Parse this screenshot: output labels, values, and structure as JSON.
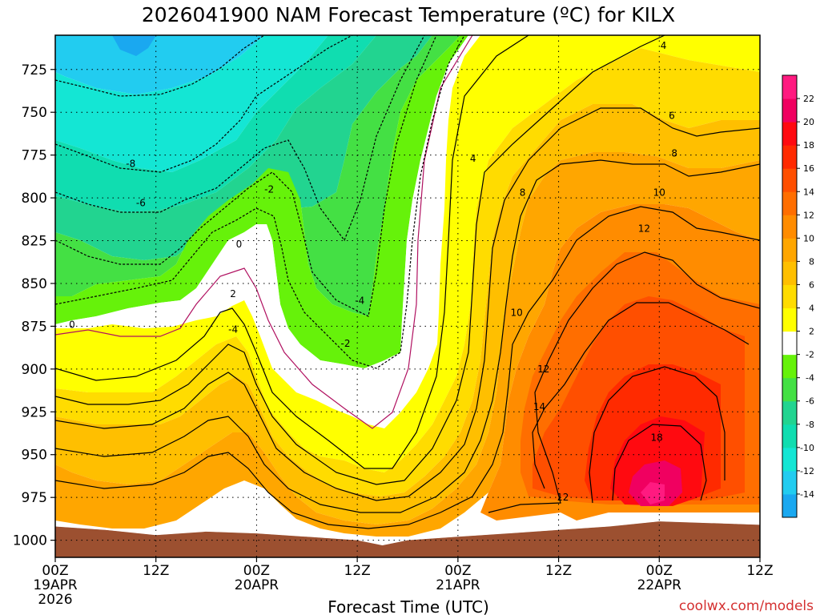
{
  "chart_data": {
    "type": "heatmap",
    "title": "2026041900 NAM Forecast Temperature (ºC) for KILX",
    "xlabel": "Forecast Time (UTC)",
    "ylabel": "",
    "credit": "coolwx.com/models",
    "x_hours_range": [
      0,
      84
    ],
    "y_pressure_range": [
      705,
      1010
    ],
    "y_ticks": [
      725,
      750,
      775,
      800,
      825,
      850,
      875,
      900,
      925,
      950,
      975,
      1000
    ],
    "x_ticks": [
      {
        "hour": 0,
        "label": "00Z",
        "sub": "19APR",
        "sub2": "2026"
      },
      {
        "hour": 12,
        "label": "12Z",
        "sub": "",
        "sub2": ""
      },
      {
        "hour": 24,
        "label": "00Z",
        "sub": "20APR",
        "sub2": ""
      },
      {
        "hour": 36,
        "label": "12Z",
        "sub": "",
        "sub2": ""
      },
      {
        "hour": 48,
        "label": "00Z",
        "sub": "21APR",
        "sub2": ""
      },
      {
        "hour": 60,
        "label": "12Z",
        "sub": "",
        "sub2": ""
      },
      {
        "hour": 72,
        "label": "00Z",
        "sub": "22APR",
        "sub2": ""
      },
      {
        "hour": 84,
        "label": "12Z",
        "sub": "",
        "sub2": ""
      }
    ],
    "colorbar": {
      "levels": [
        -16,
        -14,
        -12,
        -10,
        -8,
        -6,
        -4,
        -2,
        2,
        4,
        6,
        8,
        10,
        12,
        14,
        16,
        18,
        20,
        22,
        24
      ],
      "labels": [
        "-14",
        "-12",
        "-10",
        "-8",
        "-6",
        "-4",
        "-2",
        "2",
        "4",
        "6",
        "8",
        "10",
        "12",
        "14",
        "16",
        "18",
        "20",
        "22"
      ],
      "colors": [
        "#1aa8f0",
        "#22ccf0",
        "#14e6d4",
        "#10ddb0",
        "#22d490",
        "#44e044",
        "#66f20a",
        "#ffffff",
        "#ffff00",
        "#ffdc00",
        "#ffbf00",
        "#ffa600",
        "#ff8c00",
        "#ff6e00",
        "#ff4f00",
        "#ff2a00",
        "#ff0a10",
        "#f00060",
        "#ff1a80"
      ]
    },
    "terrain_color": "#9c5030",
    "surface_pressure": [
      {
        "hour": 0,
        "p": 992
      },
      {
        "hour": 6,
        "p": 994
      },
      {
        "hour": 12,
        "p": 997
      },
      {
        "hour": 18,
        "p": 995
      },
      {
        "hour": 24,
        "p": 996
      },
      {
        "hour": 30,
        "p": 998
      },
      {
        "hour": 36,
        "p": 1000
      },
      {
        "hour": 39,
        "p": 1003
      },
      {
        "hour": 42,
        "p": 1000
      },
      {
        "hour": 48,
        "p": 998
      },
      {
        "hour": 54,
        "p": 996
      },
      {
        "hour": 60,
        "p": 994
      },
      {
        "hour": 66,
        "p": 992
      },
      {
        "hour": 72,
        "p": 989
      },
      {
        "hour": 78,
        "p": 990
      },
      {
        "hour": 84,
        "p": 991
      }
    ],
    "contour_labels": [
      {
        "text": "-8",
        "hour": 9.0,
        "p": 780
      },
      {
        "text": "-6",
        "hour": 10.2,
        "p": 803
      },
      {
        "text": "-2",
        "hour": 25.5,
        "p": 795
      },
      {
        "text": "0",
        "hour": 21.9,
        "p": 827
      },
      {
        "text": "2",
        "hour": 21.2,
        "p": 856
      },
      {
        "text": "-4",
        "hour": 36.3,
        "p": 860
      },
      {
        "text": "-2",
        "hour": 34.6,
        "p": 885
      },
      {
        "text": "0",
        "hour": 2.0,
        "p": 874
      },
      {
        "text": "-4",
        "hour": 21.2,
        "p": 877
      },
      {
        "text": "4",
        "hour": 49.8,
        "p": 777
      },
      {
        "text": "8",
        "hour": 55.7,
        "p": 797
      },
      {
        "text": "4",
        "hour": 72.5,
        "p": 711
      },
      {
        "text": "6",
        "hour": 73.5,
        "p": 752
      },
      {
        "text": "8",
        "hour": 73.8,
        "p": 774
      },
      {
        "text": "10",
        "hour": 72.0,
        "p": 797
      },
      {
        "text": "12",
        "hour": 70.2,
        "p": 818
      },
      {
        "text": "10",
        "hour": 55.0,
        "p": 867
      },
      {
        "text": "12",
        "hour": 58.2,
        "p": 900
      },
      {
        "text": "14",
        "hour": 57.7,
        "p": 922
      },
      {
        "text": "18",
        "hour": 71.7,
        "p": 940
      },
      {
        "text": "12",
        "hour": 60.5,
        "p": 975
      }
    ]
  }
}
